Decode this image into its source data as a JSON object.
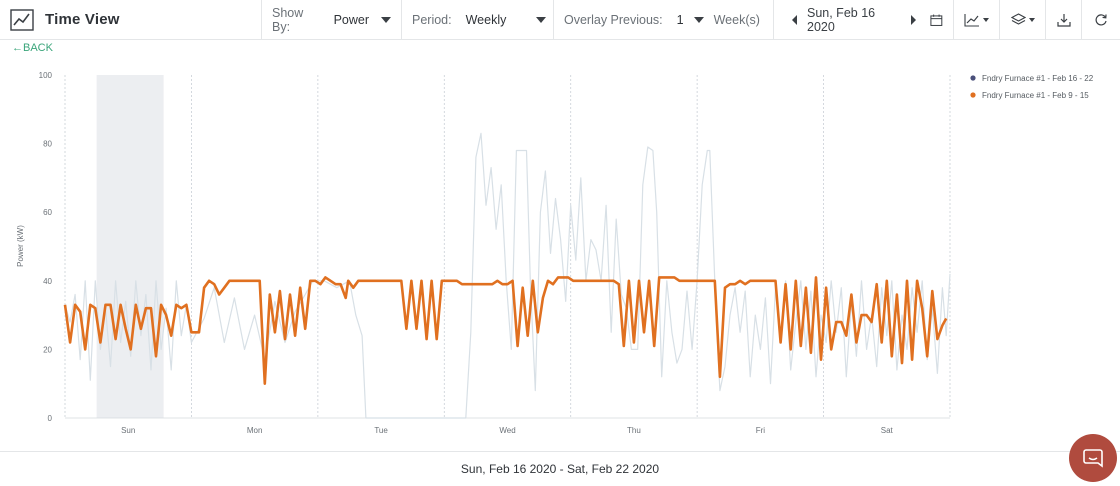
{
  "toolbar": {
    "title": "Time View",
    "show_by_label": "Show By:",
    "show_by_value": "Power",
    "period_label": "Period:",
    "period_value": "Weekly",
    "overlay_label": "Overlay Previous:",
    "overlay_count": "1",
    "overlay_unit": "Week(s)",
    "date": "Sun, Feb 16 2020"
  },
  "back_label": "←BACK",
  "footer_range": "Sun, Feb 16 2020 - Sat, Feb 22 2020",
  "colors": {
    "current": "#d8e0e6",
    "current_legend": "#4a4f7a",
    "previous": "#e07020",
    "shade": "#eceef1",
    "chat": "#b04b3e"
  },
  "chart_data": {
    "type": "line",
    "ylabel": "Power (kW)",
    "xlabel": "",
    "ylim": [
      0,
      100
    ],
    "yticks": [
      0,
      20,
      40,
      60,
      80,
      100
    ],
    "xlim": [
      0,
      7
    ],
    "x_unit": "days since Sun, Feb 16 2020",
    "categories": [
      "Sun",
      "Mon",
      "Tue",
      "Wed",
      "Thu",
      "Fri",
      "Sat"
    ],
    "grid": "dotted vertical lines at day boundaries",
    "legend_position": "top-right",
    "shaded_region": [
      0.25,
      0.78
    ],
    "series": [
      {
        "name": "Fndry Furnace #1 - Feb 16 - 22",
        "color": "#d8e0e6",
        "points": [
          [
            0.0,
            33
          ],
          [
            0.04,
            28
          ],
          [
            0.08,
            36
          ],
          [
            0.12,
            17
          ],
          [
            0.16,
            40
          ],
          [
            0.2,
            11
          ],
          [
            0.24,
            40
          ],
          [
            0.28,
            20
          ],
          [
            0.32,
            32
          ],
          [
            0.36,
            15
          ],
          [
            0.4,
            40
          ],
          [
            0.44,
            22
          ],
          [
            0.48,
            34
          ],
          [
            0.52,
            18
          ],
          [
            0.56,
            40
          ],
          [
            0.6,
            24
          ],
          [
            0.64,
            36
          ],
          [
            0.68,
            14
          ],
          [
            0.72,
            40
          ],
          [
            0.76,
            20
          ],
          [
            0.8,
            32
          ],
          [
            0.84,
            14
          ],
          [
            0.88,
            40
          ],
          [
            0.92,
            24
          ],
          [
            0.96,
            33
          ],
          [
            1.0,
            22
          ],
          [
            1.1,
            29
          ],
          [
            1.18,
            38
          ],
          [
            1.26,
            22
          ],
          [
            1.34,
            35
          ],
          [
            1.42,
            20
          ],
          [
            1.5,
            30
          ],
          [
            1.58,
            17
          ],
          [
            1.66,
            34
          ],
          [
            1.74,
            22
          ],
          [
            1.82,
            31
          ],
          [
            1.9,
            36
          ],
          [
            1.96,
            40
          ],
          [
            2.05,
            40
          ],
          [
            2.15,
            38
          ],
          [
            2.25,
            40
          ],
          [
            2.3,
            30
          ],
          [
            2.35,
            24
          ],
          [
            2.38,
            0
          ],
          [
            2.6,
            0
          ],
          [
            2.8,
            0
          ],
          [
            3.0,
            0
          ],
          [
            3.17,
            0
          ],
          [
            3.21,
            25
          ],
          [
            3.25,
            76
          ],
          [
            3.29,
            83
          ],
          [
            3.33,
            62
          ],
          [
            3.37,
            73
          ],
          [
            3.41,
            55
          ],
          [
            3.45,
            68
          ],
          [
            3.49,
            40
          ],
          [
            3.53,
            20
          ],
          [
            3.57,
            78
          ],
          [
            3.65,
            78
          ],
          [
            3.68,
            40
          ],
          [
            3.72,
            8
          ],
          [
            3.76,
            60
          ],
          [
            3.8,
            72
          ],
          [
            3.84,
            48
          ],
          [
            3.88,
            64
          ],
          [
            3.92,
            52
          ],
          [
            3.96,
            34
          ],
          [
            4.0,
            62
          ],
          [
            4.04,
            46
          ],
          [
            4.08,
            70
          ],
          [
            4.12,
            40
          ],
          [
            4.16,
            52
          ],
          [
            4.2,
            49
          ],
          [
            4.24,
            40
          ],
          [
            4.28,
            62
          ],
          [
            4.32,
            25
          ],
          [
            4.36,
            58
          ],
          [
            4.4,
            36
          ],
          [
            4.44,
            32
          ],
          [
            4.48,
            20
          ],
          [
            4.53,
            20
          ],
          [
            4.57,
            68
          ],
          [
            4.61,
            79
          ],
          [
            4.65,
            78
          ],
          [
            4.68,
            60
          ],
          [
            4.72,
            12
          ],
          [
            4.76,
            40
          ],
          [
            4.8,
            25
          ],
          [
            4.84,
            16
          ],
          [
            4.88,
            20
          ],
          [
            4.92,
            37
          ],
          [
            4.96,
            20
          ],
          [
            5.0,
            40
          ],
          [
            5.04,
            68
          ],
          [
            5.08,
            78
          ],
          [
            5.1,
            78
          ],
          [
            5.15,
            30
          ],
          [
            5.18,
            8
          ],
          [
            5.22,
            15
          ],
          [
            5.26,
            30
          ],
          [
            5.3,
            38
          ],
          [
            5.34,
            25
          ],
          [
            5.38,
            37
          ],
          [
            5.42,
            12
          ],
          [
            5.46,
            30
          ],
          [
            5.5,
            20
          ],
          [
            5.54,
            35
          ],
          [
            5.58,
            10
          ],
          [
            5.62,
            38
          ],
          [
            5.66,
            22
          ],
          [
            5.7,
            40
          ],
          [
            5.74,
            14
          ],
          [
            5.78,
            28
          ],
          [
            5.82,
            40
          ],
          [
            5.86,
            20
          ],
          [
            5.9,
            37
          ],
          [
            5.94,
            12
          ],
          [
            5.98,
            30
          ],
          [
            6.02,
            22
          ],
          [
            6.06,
            40
          ],
          [
            6.1,
            25
          ],
          [
            6.14,
            38
          ],
          [
            6.18,
            12
          ],
          [
            6.22,
            34
          ],
          [
            6.26,
            18
          ],
          [
            6.3,
            40
          ],
          [
            6.34,
            20
          ],
          [
            6.38,
            30
          ],
          [
            6.42,
            15
          ],
          [
            6.46,
            38
          ],
          [
            6.5,
            24
          ],
          [
            6.54,
            40
          ],
          [
            6.58,
            14
          ],
          [
            6.62,
            30
          ],
          [
            6.66,
            20
          ],
          [
            6.7,
            38
          ],
          [
            6.74,
            25
          ],
          [
            6.78,
            40
          ],
          [
            6.82,
            17
          ],
          [
            6.86,
            32
          ],
          [
            6.9,
            13
          ],
          [
            6.94,
            38
          ],
          [
            6.97,
            24
          ],
          [
            7.0,
            42
          ]
        ]
      },
      {
        "name": "Fndry Furnace #1 - Feb 9 - 15",
        "color": "#e07020",
        "points": [
          [
            0.0,
            33
          ],
          [
            0.04,
            22
          ],
          [
            0.08,
            33
          ],
          [
            0.12,
            31
          ],
          [
            0.16,
            20
          ],
          [
            0.2,
            33
          ],
          [
            0.24,
            32
          ],
          [
            0.28,
            22
          ],
          [
            0.32,
            33
          ],
          [
            0.36,
            33
          ],
          [
            0.4,
            23
          ],
          [
            0.44,
            33
          ],
          [
            0.48,
            26
          ],
          [
            0.52,
            20
          ],
          [
            0.56,
            33
          ],
          [
            0.6,
            26
          ],
          [
            0.64,
            32
          ],
          [
            0.68,
            32
          ],
          [
            0.72,
            18
          ],
          [
            0.76,
            33
          ],
          [
            0.8,
            30
          ],
          [
            0.84,
            24
          ],
          [
            0.88,
            33
          ],
          [
            0.92,
            32
          ],
          [
            0.96,
            33
          ],
          [
            1.0,
            25
          ],
          [
            1.06,
            25
          ],
          [
            1.1,
            38
          ],
          [
            1.14,
            40
          ],
          [
            1.18,
            39
          ],
          [
            1.22,
            36
          ],
          [
            1.26,
            38
          ],
          [
            1.3,
            40
          ],
          [
            1.38,
            40
          ],
          [
            1.44,
            40
          ],
          [
            1.5,
            40
          ],
          [
            1.54,
            40
          ],
          [
            1.58,
            10
          ],
          [
            1.62,
            36
          ],
          [
            1.66,
            25
          ],
          [
            1.7,
            37
          ],
          [
            1.74,
            23
          ],
          [
            1.78,
            36
          ],
          [
            1.82,
            24
          ],
          [
            1.86,
            38
          ],
          [
            1.9,
            26
          ],
          [
            1.94,
            40
          ],
          [
            1.98,
            40
          ],
          [
            2.02,
            39
          ],
          [
            2.06,
            41
          ],
          [
            2.1,
            40
          ],
          [
            2.14,
            39
          ],
          [
            2.18,
            39
          ],
          [
            2.22,
            35
          ],
          [
            2.24,
            40
          ],
          [
            2.28,
            38
          ],
          [
            2.32,
            40
          ],
          [
            2.36,
            40
          ],
          [
            2.4,
            40
          ],
          [
            2.46,
            40
          ],
          [
            2.5,
            40
          ],
          [
            2.54,
            40
          ],
          [
            2.58,
            40
          ],
          [
            2.62,
            40
          ],
          [
            2.66,
            40
          ],
          [
            2.7,
            26
          ],
          [
            2.74,
            40
          ],
          [
            2.78,
            26
          ],
          [
            2.82,
            40
          ],
          [
            2.86,
            23
          ],
          [
            2.9,
            40
          ],
          [
            2.94,
            23
          ],
          [
            2.98,
            40
          ],
          [
            3.02,
            40
          ],
          [
            3.06,
            40
          ],
          [
            3.1,
            40
          ],
          [
            3.14,
            39
          ],
          [
            3.18,
            39
          ],
          [
            3.22,
            39
          ],
          [
            3.26,
            39
          ],
          [
            3.3,
            39
          ],
          [
            3.34,
            39
          ],
          [
            3.38,
            39
          ],
          [
            3.42,
            40
          ],
          [
            3.46,
            39
          ],
          [
            3.5,
            39
          ],
          [
            3.54,
            40
          ],
          [
            3.58,
            21
          ],
          [
            3.62,
            38
          ],
          [
            3.66,
            24
          ],
          [
            3.7,
            40
          ],
          [
            3.74,
            25
          ],
          [
            3.78,
            35
          ],
          [
            3.82,
            40
          ],
          [
            3.86,
            39
          ],
          [
            3.9,
            41
          ],
          [
            3.94,
            41
          ],
          [
            3.98,
            41
          ],
          [
            4.02,
            40
          ],
          [
            4.06,
            40
          ],
          [
            4.1,
            40
          ],
          [
            4.14,
            40
          ],
          [
            4.18,
            40
          ],
          [
            4.22,
            40
          ],
          [
            4.26,
            40
          ],
          [
            4.3,
            40
          ],
          [
            4.34,
            40
          ],
          [
            4.38,
            39
          ],
          [
            4.42,
            21
          ],
          [
            4.46,
            40
          ],
          [
            4.5,
            22
          ],
          [
            4.54,
            40
          ],
          [
            4.58,
            25
          ],
          [
            4.62,
            40
          ],
          [
            4.66,
            21
          ],
          [
            4.7,
            41
          ],
          [
            4.74,
            41
          ],
          [
            4.78,
            41
          ],
          [
            4.82,
            41
          ],
          [
            4.86,
            40
          ],
          [
            4.9,
            40
          ],
          [
            4.94,
            40
          ],
          [
            4.98,
            40
          ],
          [
            5.02,
            40
          ],
          [
            5.06,
            40
          ],
          [
            5.1,
            40
          ],
          [
            5.14,
            40
          ],
          [
            5.18,
            12
          ],
          [
            5.22,
            38
          ],
          [
            5.26,
            39
          ],
          [
            5.3,
            39
          ],
          [
            5.34,
            40
          ],
          [
            5.38,
            39
          ],
          [
            5.42,
            40
          ],
          [
            5.46,
            40
          ],
          [
            5.5,
            40
          ],
          [
            5.54,
            40
          ],
          [
            5.58,
            40
          ],
          [
            5.62,
            40
          ],
          [
            5.66,
            22
          ],
          [
            5.7,
            39
          ],
          [
            5.74,
            20
          ],
          [
            5.78,
            40
          ],
          [
            5.82,
            21
          ],
          [
            5.86,
            38
          ],
          [
            5.9,
            19
          ],
          [
            5.94,
            41
          ],
          [
            5.98,
            17
          ],
          [
            6.02,
            38
          ],
          [
            6.06,
            20
          ],
          [
            6.1,
            28
          ],
          [
            6.14,
            28
          ],
          [
            6.18,
            24
          ],
          [
            6.22,
            36
          ],
          [
            6.26,
            22
          ],
          [
            6.3,
            30
          ],
          [
            6.34,
            30
          ],
          [
            6.38,
            28
          ],
          [
            6.42,
            39
          ],
          [
            6.46,
            22
          ],
          [
            6.5,
            40
          ],
          [
            6.54,
            18
          ],
          [
            6.58,
            36
          ],
          [
            6.62,
            16
          ],
          [
            6.66,
            40
          ],
          [
            6.7,
            17
          ],
          [
            6.74,
            40
          ],
          [
            6.78,
            32
          ],
          [
            6.82,
            18
          ],
          [
            6.86,
            37
          ],
          [
            6.9,
            23
          ],
          [
            6.94,
            27
          ],
          [
            6.97,
            29
          ]
        ]
      }
    ]
  }
}
